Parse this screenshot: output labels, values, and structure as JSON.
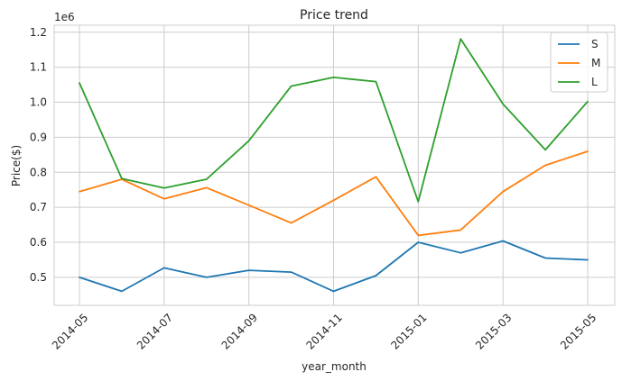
{
  "chart_data": {
    "type": "line",
    "title": "Price trend",
    "xlabel": "year_month",
    "ylabel": "Price($)",
    "y_offset_label": "1e6",
    "ylim": [
      0.42,
      1.22
    ],
    "y_ticks": [
      0.5,
      0.6,
      0.7,
      0.8,
      0.9,
      1.0,
      1.1,
      1.2
    ],
    "y_tick_labels": [
      "0.5",
      "0.6",
      "0.7",
      "0.8",
      "0.9",
      "1.0",
      "1.1",
      "1.2"
    ],
    "x": [
      "2014-05",
      "2014-06",
      "2014-07",
      "2014-08",
      "2014-09",
      "2014-10",
      "2014-11",
      "2014-12",
      "2015-01",
      "2015-02",
      "2015-03",
      "2015-04",
      "2015-05"
    ],
    "x_tick_labels": [
      "2014-05",
      "2014-07",
      "2014-09",
      "2014-11",
      "2015-01",
      "2015-03",
      "2015-05"
    ],
    "grid": true,
    "legend_position": "top-right",
    "series": [
      {
        "name": "S",
        "color": "#1f77b4",
        "values": [
          0.5,
          0.46,
          0.527,
          0.5,
          0.52,
          0.515,
          0.46,
          0.505,
          0.6,
          0.57,
          0.604,
          0.555,
          0.55
        ]
      },
      {
        "name": "M",
        "color": "#ff7f0e",
        "values": [
          0.745,
          0.78,
          0.724,
          0.756,
          0.706,
          0.655,
          0.72,
          0.787,
          0.62,
          0.635,
          0.745,
          0.82,
          0.86
        ]
      },
      {
        "name": "L",
        "color": "#2ca02c",
        "values": [
          1.055,
          0.782,
          0.755,
          0.78,
          0.89,
          1.046,
          1.071,
          1.059,
          0.716,
          1.181,
          0.995,
          0.864,
          1.002
        ]
      }
    ]
  }
}
